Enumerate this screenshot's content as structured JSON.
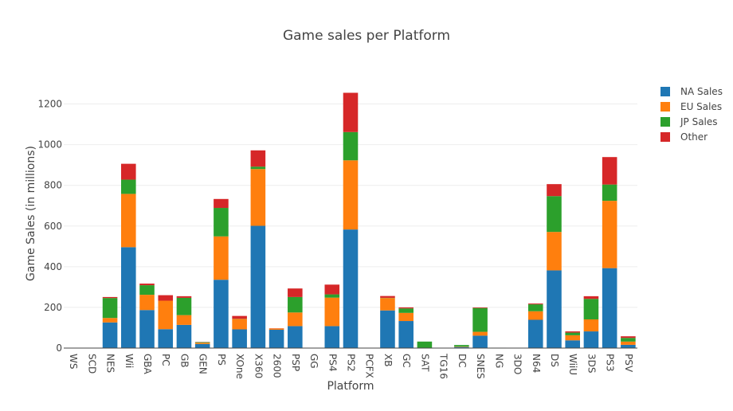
{
  "chart_data": {
    "type": "bar",
    "stacked": true,
    "title": "Game sales per Platform",
    "xlabel": "Platform",
    "ylabel": "Game Sales (in millions)",
    "ylim": [
      0,
      1300
    ],
    "yticks": [
      0,
      200,
      400,
      600,
      800,
      1000,
      1200
    ],
    "grid": true,
    "legend_position": "top-right",
    "categories": [
      "WS",
      "SCD",
      "NES",
      "Wii",
      "GBA",
      "PC",
      "GB",
      "GEN",
      "PS",
      "XOne",
      "X360",
      "2600",
      "PSP",
      "GG",
      "PS4",
      "PS2",
      "PCFX",
      "XB",
      "GC",
      "SAT",
      "TG16",
      "DC",
      "SNES",
      "NG",
      "3DO",
      "N64",
      "DS",
      "WiiU",
      "3DS",
      "PS3",
      "PSV"
    ],
    "series": [
      {
        "name": "NA Sales",
        "color": "#1f77b4",
        "values": [
          0,
          1,
          126,
          496,
          187,
          93,
          114,
          20,
          336,
          92,
          601,
          90,
          108,
          0,
          108,
          583,
          0,
          185,
          133,
          1,
          0,
          5,
          61,
          0,
          0,
          139,
          382,
          38,
          82,
          393,
          16
        ]
      },
      {
        "name": "EU Sales",
        "color": "#ff7f0e",
        "values": [
          0,
          0,
          22,
          262,
          75,
          140,
          48,
          6,
          213,
          51,
          279,
          6,
          67,
          0,
          140,
          340,
          0,
          61,
          40,
          1,
          0,
          2,
          19,
          0,
          0,
          42,
          189,
          25,
          59,
          331,
          16
        ]
      },
      {
        "name": "JP Sales",
        "color": "#2ca02c",
        "values": [
          1,
          0,
          98,
          70,
          47,
          0,
          85,
          3,
          140,
          1,
          12,
          0,
          76,
          0,
          16,
          139,
          0,
          1,
          22,
          30,
          0,
          8,
          117,
          2,
          0,
          34,
          176,
          13,
          101,
          80,
          18
        ]
      },
      {
        "name": "Other",
        "color": "#d62728",
        "values": [
          0,
          0,
          5,
          78,
          8,
          27,
          8,
          1,
          44,
          14,
          80,
          1,
          42,
          0,
          48,
          193,
          0,
          9,
          5,
          0,
          0,
          0,
          3,
          0,
          0,
          4,
          59,
          6,
          13,
          135,
          8
        ]
      }
    ]
  }
}
